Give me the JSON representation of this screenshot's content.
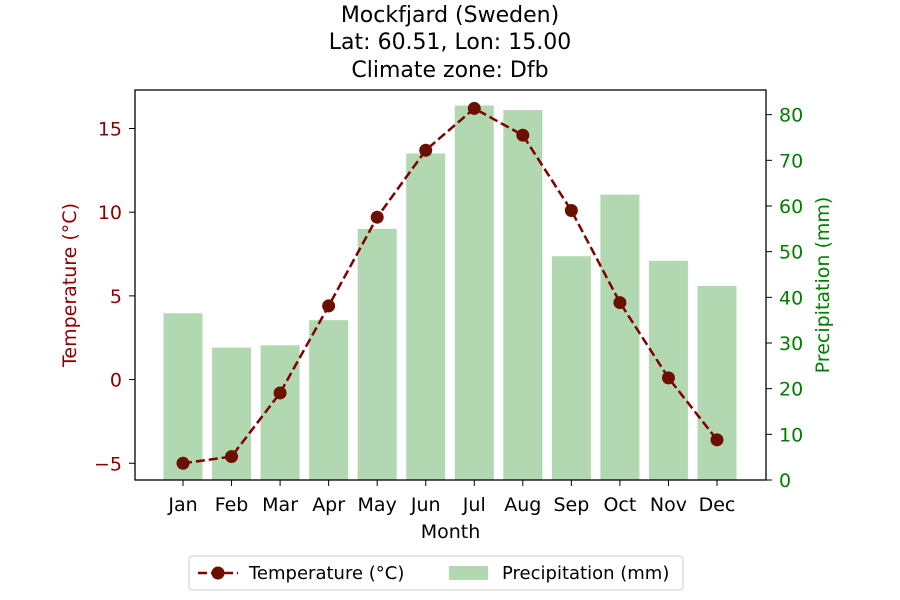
{
  "chart_data": {
    "type": "bar+line",
    "title_lines": [
      "Mockfjard (Sweden)",
      "Lat: 60.51, Lon: 15.00",
      "Climate zone: Dfb"
    ],
    "categories": [
      "Jan",
      "Feb",
      "Mar",
      "Apr",
      "May",
      "Jun",
      "Jul",
      "Aug",
      "Sep",
      "Oct",
      "Nov",
      "Dec"
    ],
    "xlabel": "Month",
    "series": [
      {
        "name": "Temperature (°C)",
        "kind": "line",
        "axis": "left",
        "values": [
          -5.0,
          -4.6,
          -0.8,
          4.4,
          9.7,
          13.7,
          16.2,
          14.6,
          10.1,
          4.6,
          0.1,
          -3.6
        ],
        "color": "#800000",
        "marker_color": "#6b1000",
        "linestyle": "dashed",
        "marker": "circle"
      },
      {
        "name": "Precipitation (mm)",
        "kind": "bar",
        "axis": "right",
        "values": [
          36.5,
          29,
          29.5,
          35,
          55,
          71.5,
          82,
          81,
          49,
          62.5,
          48,
          42.5
        ],
        "color": "#b2d8b2"
      }
    ],
    "y_left": {
      "label": "Temperature (°C)",
      "range": [
        -6,
        17.3
      ],
      "ticks": [
        -5,
        0,
        5,
        10,
        15
      ],
      "tick_labels": [
        "−5",
        "0",
        "5",
        "10",
        "15"
      ],
      "color": "#8b0000"
    },
    "y_right": {
      "label": "Precipitation (mm)",
      "range": [
        0,
        85.4
      ],
      "ticks": [
        0,
        10,
        20,
        30,
        40,
        50,
        60,
        70,
        80
      ],
      "tick_labels": [
        "0",
        "10",
        "20",
        "30",
        "40",
        "50",
        "60",
        "70",
        "80"
      ],
      "color": "#008000"
    },
    "grid": false,
    "legend_position": "bottom-center"
  }
}
